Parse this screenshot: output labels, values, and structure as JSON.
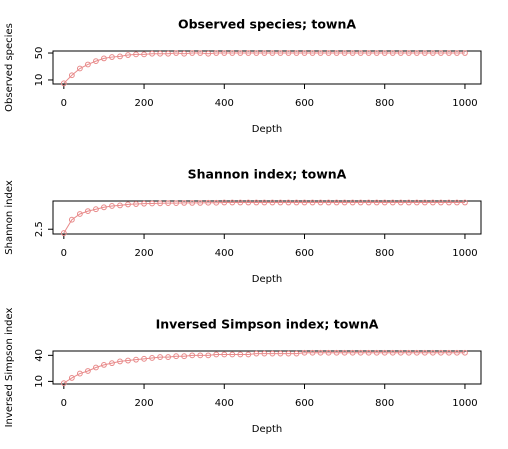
{
  "chart_data": [
    {
      "type": "line",
      "title": "Observed species; townA",
      "x_label": "Depth",
      "y_label": "Observed species",
      "color": "#e88a8a",
      "x": [
        0,
        20,
        40,
        60,
        80,
        100,
        120,
        140,
        160,
        180,
        200,
        220,
        240,
        260,
        280,
        300,
        320,
        340,
        360,
        380,
        400,
        420,
        440,
        460,
        480,
        500,
        520,
        540,
        560,
        580,
        600,
        620,
        640,
        660,
        680,
        700,
        720,
        740,
        760,
        780,
        800,
        820,
        840,
        860,
        880,
        900,
        920,
        940,
        960,
        980,
        1000
      ],
      "values": [
        5,
        17,
        27,
        33,
        38,
        42,
        44,
        45,
        47,
        48,
        48,
        49,
        49,
        49,
        50,
        49,
        50,
        50,
        49,
        50,
        50,
        50,
        50,
        50,
        50,
        50,
        50,
        50,
        50,
        50,
        50,
        50,
        50,
        50,
        50,
        50,
        50,
        50,
        50,
        50,
        50,
        50,
        50,
        50,
        50,
        50,
        50,
        50,
        50,
        50,
        50
      ],
      "xlim": [
        -27,
        1040
      ],
      "xticks": [
        0,
        200,
        400,
        600,
        800,
        1000
      ],
      "ylim": [
        4,
        53
      ],
      "yticks": [
        10,
        50
      ]
    },
    {
      "type": "line",
      "title": "Shannon index; townA",
      "x_label": "Depth",
      "y_label": "Shannon index",
      "color": "#e88a8a",
      "x": [
        0,
        20,
        40,
        60,
        80,
        100,
        120,
        140,
        160,
        180,
        200,
        220,
        240,
        260,
        280,
        300,
        320,
        340,
        360,
        380,
        400,
        420,
        440,
        460,
        480,
        500,
        520,
        540,
        560,
        580,
        600,
        620,
        640,
        660,
        680,
        700,
        720,
        740,
        760,
        780,
        800,
        820,
        840,
        860,
        880,
        900,
        920,
        940,
        960,
        980,
        1000
      ],
      "values": [
        2.3,
        3.0,
        3.3,
        3.45,
        3.55,
        3.65,
        3.72,
        3.75,
        3.8,
        3.82,
        3.84,
        3.85,
        3.86,
        3.87,
        3.87,
        3.88,
        3.88,
        3.88,
        3.89,
        3.89,
        3.9,
        3.9,
        3.9,
        3.9,
        3.9,
        3.9,
        3.9,
        3.9,
        3.9,
        3.9,
        3.9,
        3.9,
        3.9,
        3.9,
        3.9,
        3.9,
        3.9,
        3.9,
        3.9,
        3.9,
        3.9,
        3.9,
        3.9,
        3.9,
        3.9,
        3.9,
        3.9,
        3.9,
        3.9,
        3.9,
        3.9
      ],
      "xlim": [
        -27,
        1040
      ],
      "xticks": [
        0,
        200,
        400,
        600,
        800,
        1000
      ],
      "ylim": [
        2.25,
        3.98
      ],
      "yticks": [
        2.5
      ]
    },
    {
      "type": "line",
      "title": "Inversed Simpson index; townA",
      "x_label": "Depth",
      "y_label": "Inversed Simpson index",
      "color": "#e88a8a",
      "x": [
        0,
        20,
        40,
        60,
        80,
        100,
        120,
        140,
        160,
        180,
        200,
        220,
        240,
        260,
        280,
        300,
        320,
        340,
        360,
        380,
        400,
        420,
        440,
        460,
        480,
        500,
        520,
        540,
        560,
        580,
        600,
        620,
        640,
        660,
        680,
        700,
        720,
        740,
        760,
        780,
        800,
        820,
        840,
        860,
        880,
        900,
        920,
        940,
        960,
        980,
        1000
      ],
      "values": [
        8,
        14,
        19,
        22,
        26,
        29,
        31,
        33,
        34,
        35,
        36,
        37,
        38,
        38,
        39,
        39,
        40,
        40,
        40,
        41,
        41,
        41,
        41,
        41,
        42,
        42,
        42,
        42,
        42,
        42,
        43,
        43,
        43,
        43,
        43,
        43,
        43,
        43,
        43,
        43,
        43,
        43,
        43,
        43,
        43,
        43,
        43,
        43,
        43,
        43,
        43
      ],
      "xlim": [
        -27,
        1040
      ],
      "xticks": [
        0,
        200,
        400,
        600,
        800,
        1000
      ],
      "ylim": [
        7,
        45
      ],
      "yticks": [
        10,
        40
      ]
    }
  ]
}
